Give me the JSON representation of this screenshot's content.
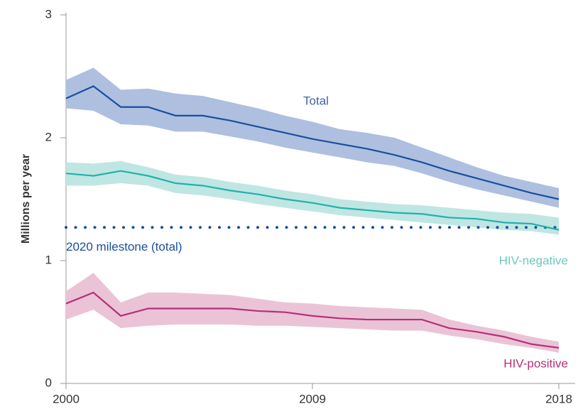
{
  "chart_data": {
    "type": "line",
    "y_label": "Millions per year",
    "x": [
      2000,
      2001,
      2002,
      2003,
      2004,
      2005,
      2006,
      2007,
      2008,
      2009,
      2010,
      2011,
      2012,
      2013,
      2014,
      2015,
      2016,
      2017,
      2018
    ],
    "xlim": [
      2000,
      2018
    ],
    "xticks": [
      2000,
      2009,
      2018
    ],
    "ylim": [
      0,
      3
    ],
    "yticks": [
      0,
      1,
      2,
      3
    ],
    "series": [
      {
        "name": "Total",
        "color": "#1a4f9c",
        "band_color": "#aebfe0",
        "label_color": "#3e63a8",
        "values": [
          2.32,
          2.42,
          2.25,
          2.25,
          2.18,
          2.18,
          2.14,
          2.09,
          2.04,
          1.99,
          1.95,
          1.91,
          1.86,
          1.8,
          1.73,
          1.67,
          1.61,
          1.55,
          1.5
        ],
        "upper": [
          2.47,
          2.57,
          2.39,
          2.4,
          2.36,
          2.34,
          2.29,
          2.24,
          2.18,
          2.13,
          2.07,
          2.04,
          2.0,
          1.92,
          1.84,
          1.76,
          1.69,
          1.64,
          1.59
        ],
        "lower": [
          2.24,
          2.22,
          2.11,
          2.1,
          2.05,
          2.05,
          2.01,
          1.97,
          1.92,
          1.88,
          1.84,
          1.8,
          1.77,
          1.71,
          1.64,
          1.58,
          1.53,
          1.48,
          1.43
        ]
      },
      {
        "name": "HIV-negative",
        "color": "#20b2aa",
        "band_color": "#bfe6e3",
        "label_color": "#6cc8c0",
        "values": [
          1.71,
          1.69,
          1.73,
          1.69,
          1.63,
          1.61,
          1.57,
          1.54,
          1.5,
          1.47,
          1.43,
          1.41,
          1.39,
          1.38,
          1.35,
          1.34,
          1.31,
          1.3,
          1.25
        ],
        "upper": [
          1.8,
          1.79,
          1.81,
          1.76,
          1.7,
          1.68,
          1.64,
          1.61,
          1.57,
          1.54,
          1.5,
          1.48,
          1.46,
          1.45,
          1.43,
          1.41,
          1.39,
          1.38,
          1.35
        ],
        "lower": [
          1.61,
          1.61,
          1.63,
          1.61,
          1.55,
          1.53,
          1.5,
          1.46,
          1.43,
          1.4,
          1.37,
          1.35,
          1.33,
          1.31,
          1.29,
          1.27,
          1.25,
          1.24,
          1.21
        ]
      },
      {
        "name": "HIV-positive",
        "color": "#b5307a",
        "band_color": "#ebc3d6",
        "label_color": "#b5307a",
        "values": [
          0.65,
          0.74,
          0.55,
          0.61,
          0.61,
          0.61,
          0.61,
          0.59,
          0.58,
          0.55,
          0.53,
          0.52,
          0.52,
          0.52,
          0.45,
          0.42,
          0.38,
          0.32,
          0.29
        ],
        "upper": [
          0.75,
          0.9,
          0.66,
          0.74,
          0.74,
          0.73,
          0.72,
          0.69,
          0.66,
          0.65,
          0.63,
          0.62,
          0.61,
          0.6,
          0.52,
          0.47,
          0.43,
          0.38,
          0.34
        ],
        "lower": [
          0.52,
          0.6,
          0.45,
          0.47,
          0.48,
          0.48,
          0.48,
          0.47,
          0.47,
          0.46,
          0.45,
          0.44,
          0.43,
          0.43,
          0.39,
          0.36,
          0.32,
          0.29,
          0.25
        ]
      }
    ],
    "reference_line": {
      "label": "2020 milestone (total)",
      "value": 1.27,
      "color": "#1a4f9c"
    }
  }
}
